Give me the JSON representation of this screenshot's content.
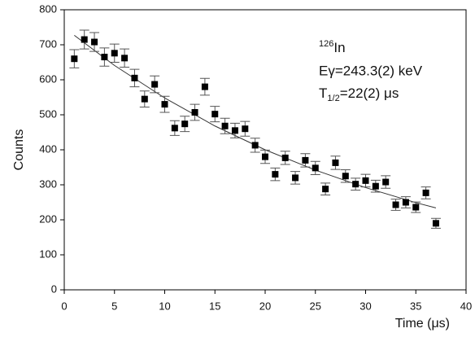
{
  "chart_data": {
    "type": "scatter",
    "x": [
      1,
      2,
      3,
      4,
      5,
      6,
      7,
      8,
      9,
      10,
      11,
      12,
      13,
      14,
      15,
      16,
      17,
      18,
      19,
      20,
      21,
      22,
      23,
      24,
      25,
      26,
      27,
      28,
      29,
      30,
      31,
      32,
      33,
      34,
      35,
      36,
      37
    ],
    "values": [
      660,
      715,
      708,
      665,
      676,
      662,
      605,
      545,
      587,
      530,
      462,
      474,
      507,
      580,
      502,
      468,
      455,
      460,
      413,
      380,
      330,
      377,
      320,
      370,
      348,
      288,
      363,
      325,
      302,
      312,
      296,
      308,
      243,
      250,
      236,
      277,
      190
    ],
    "errors": [
      26,
      27,
      27,
      26,
      26,
      26,
      25,
      23,
      24,
      23,
      21,
      22,
      23,
      24,
      22,
      22,
      21,
      21,
      20,
      19,
      18,
      19,
      18,
      19,
      19,
      17,
      19,
      18,
      17,
      18,
      17,
      18,
      16,
      16,
      15,
      17,
      14
    ],
    "color": "#000000",
    "fit": {
      "x": [
        1,
        5,
        10,
        15,
        20,
        25,
        30,
        35,
        37
      ],
      "values": [
        727,
        641,
        548,
        468,
        400,
        342,
        292,
        249,
        234
      ],
      "color": "#333333"
    },
    "x_label": "Time (μs)",
    "y_label": "Counts",
    "xlim": [
      0,
      40
    ],
    "xticks": [
      0,
      5,
      10,
      15,
      20,
      25,
      30,
      35,
      40
    ],
    "ylim": [
      0,
      800
    ],
    "yticks": [
      0,
      100,
      200,
      300,
      400,
      500,
      600,
      700,
      800
    ],
    "annotations": {
      "isotope_sup": "126",
      "isotope": "In",
      "energy": "Eγ=243.3(2) keV",
      "half_life_symbol": "T",
      "half_life_sub": "1/2",
      "half_life": "=22(2) μs"
    }
  }
}
